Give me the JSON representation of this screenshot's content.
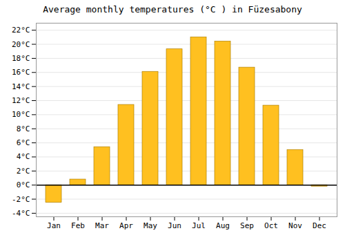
{
  "chart_data": {
    "type": "bar",
    "title": "Average monthly temperatures (°C ) in Füzesabony",
    "categories": [
      "Jan",
      "Feb",
      "Mar",
      "Apr",
      "May",
      "Jun",
      "Jul",
      "Aug",
      "Sep",
      "Oct",
      "Nov",
      "Dec"
    ],
    "values": [
      -2.5,
      0.8,
      5.4,
      11.4,
      16.1,
      19.3,
      21.0,
      20.4,
      16.7,
      11.3,
      5.0,
      -0.2
    ],
    "color": "#FFC020",
    "ylim": [
      -4.5,
      23
    ],
    "yticks": [
      {
        "value": -4,
        "label": "-4°C"
      },
      {
        "value": -2,
        "label": "-2°C"
      },
      {
        "value": 0,
        "label": "0°C"
      },
      {
        "value": 2,
        "label": "2°C"
      },
      {
        "value": 4,
        "label": "4°C"
      },
      {
        "value": 6,
        "label": "6°C"
      },
      {
        "value": 8,
        "label": "8°C"
      },
      {
        "value": 10,
        "label": "10°C"
      },
      {
        "value": 12,
        "label": "12°C"
      },
      {
        "value": 14,
        "label": "14°C"
      },
      {
        "value": 16,
        "label": "16°C"
      },
      {
        "value": 18,
        "label": "18°C"
      },
      {
        "value": 20,
        "label": "20°C"
      },
      {
        "value": 22,
        "label": "22°C"
      }
    ],
    "grid": true
  }
}
